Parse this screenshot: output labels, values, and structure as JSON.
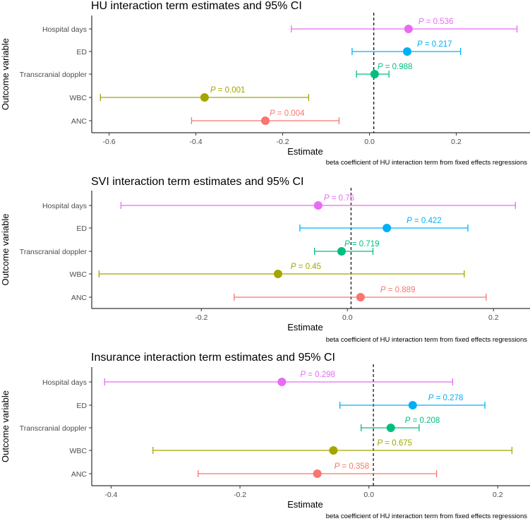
{
  "chart_data": [
    {
      "type": "forest",
      "title": "HU interaction term estimates and 95% CI",
      "xlabel": "Estimate",
      "ylabel": "Outcome variable",
      "caption": "beta coefficient of HU interaction term from fixed effects regressions",
      "xlim": [
        -0.64,
        0.37
      ],
      "xticks": [
        -0.6,
        -0.4,
        -0.2,
        0.0,
        0.2
      ],
      "xtick_labels": [
        "-0.6",
        "-0.4",
        "-0.2",
        "0.0",
        "0.2"
      ],
      "reference_line": 0.01,
      "grid": false,
      "categories": [
        "Hospital days",
        "ED",
        "Transcranial doppler",
        "WBC",
        "ANC"
      ],
      "estimate": [
        0.09,
        0.087,
        0.012,
        -0.38,
        -0.24
      ],
      "ci_low": [
        -0.18,
        -0.04,
        -0.03,
        -0.62,
        -0.41
      ],
      "ci_high": [
        0.34,
        0.21,
        0.045,
        -0.14,
        -0.07
      ],
      "p_labels": [
        "P = 0.536",
        "P = 0.217",
        "P = 0.988",
        "P = 0.001",
        "P = 0.004"
      ],
      "p_italic": "P",
      "p_values": [
        " = 0.536",
        " = 0.217",
        " = 0.988",
        " = 0.001",
        " = 0.004"
      ]
    },
    {
      "type": "forest",
      "title": "SVI interaction term estimates and 95% CI",
      "xlabel": "Estimate",
      "ylabel": "Outcome variable",
      "caption": "beta coefficient of HU interaction term from fixed effects regressions",
      "xlim": [
        -0.35,
        0.25
      ],
      "xticks": [
        -0.2,
        0.0,
        0.2
      ],
      "xtick_labels": [
        "-0.2",
        "0.0",
        "0.2"
      ],
      "reference_line": 0.005,
      "grid": false,
      "categories": [
        "Hospital days",
        "ED",
        "Transcranial doppler",
        "WBC",
        "ANC"
      ],
      "estimate": [
        -0.04,
        0.054,
        -0.008,
        -0.095,
        0.018
      ],
      "ci_low": [
        -0.31,
        -0.065,
        -0.045,
        -0.34,
        -0.155
      ],
      "ci_high": [
        0.23,
        0.165,
        0.035,
        0.16,
        0.19
      ],
      "p_labels": [
        "P = 0.76",
        "P = 0.422",
        "P = 0.719",
        "P = 0.45",
        "P = 0.889"
      ],
      "p_italic": "P",
      "p_values": [
        " = 0.76",
        " = 0.422",
        " = 0.719",
        " = 0.45",
        " = 0.889"
      ]
    },
    {
      "type": "forest",
      "title": "Insurance interaction term estimates and 95% CI",
      "xlabel": "Estimate",
      "ylabel": "Outcome variable",
      "caption": "beta coefficient of HU interaction term from fixed effects regressions",
      "xlim": [
        -0.43,
        0.25
      ],
      "xticks": [
        -0.4,
        -0.2,
        0.0,
        0.2
      ],
      "xtick_labels": [
        "-0.4",
        "-0.2",
        "0.0",
        "0.2"
      ],
      "reference_line": 0.007,
      "grid": false,
      "categories": [
        "Hospital days",
        "ED",
        "Transcranial doppler",
        "WBC",
        "ANC"
      ],
      "estimate": [
        -0.135,
        0.068,
        0.034,
        -0.055,
        -0.08
      ],
      "ci_low": [
        -0.41,
        -0.045,
        -0.012,
        -0.335,
        -0.265
      ],
      "ci_high": [
        0.13,
        0.18,
        0.078,
        0.222,
        0.105
      ],
      "p_labels": [
        "P = 0.298",
        "P = 0.278",
        "P = 0.208",
        "P = 0.675",
        "P = 0.358"
      ],
      "p_italic": "P",
      "p_values": [
        " = 0.298",
        " = 0.278",
        " = 0.208",
        " = 0.675",
        " = 0.358"
      ]
    }
  ],
  "series_colors": [
    "#E76BF3",
    "#00B0F6",
    "#00BF7D",
    "#A3A500",
    "#F8766D"
  ]
}
